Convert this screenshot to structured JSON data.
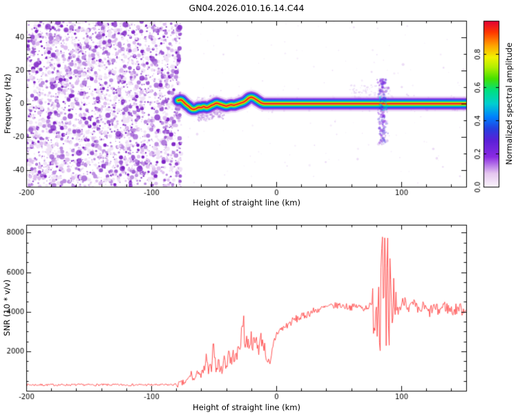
{
  "chart_data": [
    {
      "type": "heatmap",
      "title": "GN04.2026.010.16.14.C44",
      "xlabel": "Height of straight line (km)",
      "ylabel": "Frequency (Hz)",
      "xlim": [
        -200,
        152
      ],
      "ylim": [
        -50,
        50
      ],
      "xticks": [
        -200,
        -100,
        0,
        100
      ],
      "yticks": [
        -40,
        -20,
        0,
        20,
        40
      ],
      "grid": false,
      "colorbar": {
        "label": "Normalized spectral amplitude",
        "ticks": [
          "0.0",
          "0.2",
          "0.4",
          "0.6",
          "0.8"
        ],
        "tick_values": [
          0,
          0.2,
          0.4,
          0.6,
          0.8
        ],
        "range": [
          0,
          1
        ],
        "stops": [
          [
            0.0,
            "#faf3fc"
          ],
          [
            0.08,
            "#e5c6f0"
          ],
          [
            0.18,
            "#8a2be2"
          ],
          [
            0.28,
            "#5a20d8"
          ],
          [
            0.35,
            "#2540e0"
          ],
          [
            0.42,
            "#0080ff"
          ],
          [
            0.5,
            "#00cfd0"
          ],
          [
            0.58,
            "#00e080"
          ],
          [
            0.65,
            "#45e000"
          ],
          [
            0.72,
            "#b2ef00"
          ],
          [
            0.78,
            "#f2f200"
          ],
          [
            0.85,
            "#ffa300"
          ],
          [
            0.93,
            "#ff3800"
          ],
          [
            1.0,
            "#e00038"
          ]
        ]
      },
      "noise_region": {
        "x_range": [
          -200,
          -76
        ],
        "description": "dense purple speckle noise, normalized amplitude ~0-0.3, below echo onset height"
      },
      "echo_band": {
        "description": "narrow radar echo ridge centered near 0 Hz, amplitude ~1 at core falling to 0 at ~+/-5 Hz",
        "center": [
          [
            -78,
            2
          ],
          [
            -76,
            2.5
          ],
          [
            -74,
            1
          ],
          [
            -72,
            -0.5
          ],
          [
            -70,
            -1.5
          ],
          [
            -68,
            -3
          ],
          [
            -66,
            -3.5
          ],
          [
            -64,
            -3
          ],
          [
            -62,
            -2
          ],
          [
            -60,
            -2.5
          ],
          [
            -58,
            -1.5
          ],
          [
            -56,
            -2.5
          ],
          [
            -54,
            -2
          ],
          [
            -52,
            -1
          ],
          [
            -50,
            -0.5
          ],
          [
            -48,
            0.5
          ],
          [
            -46,
            0
          ],
          [
            -44,
            -0.5
          ],
          [
            -42,
            -1
          ],
          [
            -40,
            -1.5
          ],
          [
            -38,
            -1
          ],
          [
            -36,
            -0.5
          ],
          [
            -34,
            -1
          ],
          [
            -32,
            -0.5
          ],
          [
            -30,
            0
          ],
          [
            -28,
            0.5
          ],
          [
            -26,
            1
          ],
          [
            -24,
            2
          ],
          [
            -22,
            3.5
          ],
          [
            -20,
            4
          ],
          [
            -18,
            3.5
          ],
          [
            -16,
            2.5
          ],
          [
            -14,
            1.5
          ],
          [
            -12,
            0.5
          ],
          [
            -10,
            0
          ],
          [
            -5,
            0
          ],
          [
            0,
            0
          ],
          [
            20,
            0
          ],
          [
            152,
            0
          ]
        ],
        "layers": [
          {
            "color": "#ddb8ee",
            "width": 22,
            "alpha": 0.5
          },
          {
            "color": "#8a2be2",
            "width": 17,
            "alpha": 0.8
          },
          {
            "color": "#2a3fe0",
            "width": 13,
            "alpha": 0.9
          },
          {
            "color": "#0080ff",
            "width": 10.5,
            "alpha": 1
          },
          {
            "color": "#00cfd0",
            "width": 8.5,
            "alpha": 1
          },
          {
            "color": "#22dd44",
            "width": 6.5,
            "alpha": 1
          },
          {
            "color": "#f2f200",
            "width": 4.5,
            "alpha": 1
          },
          {
            "color": "#ff9900",
            "width": 3.2,
            "alpha": 1
          },
          {
            "color": "#ee2222",
            "width": 1.8,
            "alpha": 1
          }
        ]
      },
      "disturbance": {
        "x": 85,
        "freq_range": [
          -25,
          15
        ],
        "description": "vertical spectral smear near 85 km"
      }
    },
    {
      "type": "line",
      "xlabel": "Height of straight line (km)",
      "ylabel": "SNR (10 * v/v)",
      "xlim": [
        -200,
        152
      ],
      "ylim": [
        0,
        8400
      ],
      "xticks": [
        -200,
        -100,
        0,
        100
      ],
      "yticks": [
        2000,
        4000,
        6000,
        8000
      ],
      "color": "#ff4040",
      "baseline": [
        [
          -200,
          300
        ],
        [
          -150,
          300
        ],
        [
          -110,
          300
        ],
        [
          -90,
          300
        ],
        [
          -83,
          310
        ],
        [
          -78,
          330
        ],
        [
          -75,
          380
        ],
        [
          -72,
          450
        ],
        [
          -70,
          620
        ],
        [
          -68,
          880
        ],
        [
          -66,
          520
        ],
        [
          -64,
          720
        ],
        [
          -62,
          1080
        ],
        [
          -60,
          700
        ],
        [
          -58,
          920
        ],
        [
          -56,
          1580
        ],
        [
          -54,
          900
        ],
        [
          -52,
          1150
        ],
        [
          -50,
          2650
        ],
        [
          -49,
          1500
        ],
        [
          -48,
          1000
        ],
        [
          -46,
          1480
        ],
        [
          -44,
          920
        ],
        [
          -42,
          1680
        ],
        [
          -40,
          1180
        ],
        [
          -38,
          2080
        ],
        [
          -36,
          1400
        ],
        [
          -34,
          1880
        ],
        [
          -32,
          1580
        ],
        [
          -30,
          2180
        ],
        [
          -28,
          2680
        ],
        [
          -26,
          3780
        ],
        [
          -25,
          2080
        ],
        [
          -24,
          2580
        ],
        [
          -22,
          2380
        ],
        [
          -20,
          2680
        ],
        [
          -18,
          2280
        ],
        [
          -16,
          2580
        ],
        [
          -14,
          2180
        ],
        [
          -12,
          2680
        ],
        [
          -10,
          2380
        ],
        [
          -8,
          1780
        ],
        [
          -6,
          1380
        ],
        [
          -5,
          1120
        ],
        [
          -4,
          1580
        ],
        [
          -2,
          2380
        ],
        [
          0,
          2880
        ],
        [
          3,
          3080
        ],
        [
          6,
          3180
        ],
        [
          10,
          3380
        ],
        [
          14,
          3580
        ],
        [
          18,
          3680
        ],
        [
          22,
          3780
        ],
        [
          26,
          3930
        ],
        [
          30,
          4030
        ],
        [
          35,
          4130
        ],
        [
          40,
          4230
        ],
        [
          45,
          4280
        ],
        [
          50,
          4330
        ],
        [
          55,
          4280
        ],
        [
          60,
          4230
        ],
        [
          65,
          4280
        ],
        [
          70,
          4180
        ],
        [
          74,
          4280
        ],
        [
          77,
          4330
        ],
        [
          79,
          3780
        ],
        [
          80,
          4580
        ],
        [
          81,
          3380
        ],
        [
          82,
          5580
        ],
        [
          83,
          2380
        ],
        [
          84,
          6780
        ],
        [
          85,
          8280
        ],
        [
          86,
          4180
        ],
        [
          87,
          7780
        ],
        [
          88,
          2180
        ],
        [
          89,
          7980
        ],
        [
          90,
          680
        ],
        [
          91,
          5780
        ],
        [
          92,
          4180
        ],
        [
          93,
          1880
        ],
        [
          94,
          5180
        ],
        [
          95,
          4380
        ],
        [
          97,
          4080
        ],
        [
          100,
          4280
        ],
        [
          103,
          4680
        ],
        [
          106,
          4180
        ],
        [
          110,
          4380
        ],
        [
          114,
          3980
        ],
        [
          118,
          4280
        ],
        [
          122,
          3930
        ],
        [
          126,
          4230
        ],
        [
          130,
          4030
        ],
        [
          134,
          4330
        ],
        [
          138,
          4130
        ],
        [
          142,
          4030
        ],
        [
          146,
          4230
        ],
        [
          149,
          4080
        ],
        [
          152,
          4130
        ]
      ],
      "noise_segments": [
        [
          -200,
          -80,
          55
        ],
        [
          -80,
          -62,
          170
        ],
        [
          -62,
          -40,
          340
        ],
        [
          -40,
          -10,
          420
        ],
        [
          -10,
          0,
          330
        ],
        [
          0,
          30,
          200
        ],
        [
          30,
          77,
          170
        ],
        [
          77,
          96,
          1250
        ],
        [
          96,
          152,
          300
        ]
      ]
    }
  ]
}
